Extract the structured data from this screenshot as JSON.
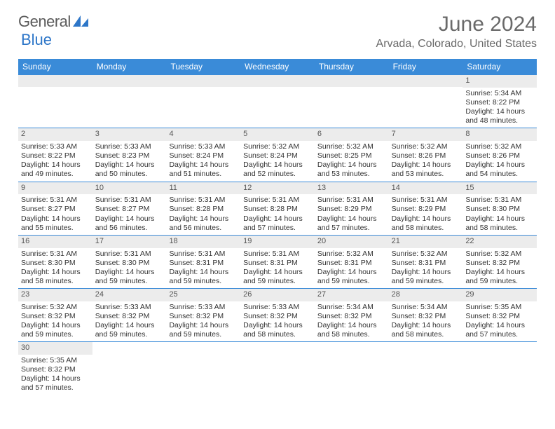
{
  "brand": {
    "part1": "General",
    "part2": "Blue"
  },
  "title": "June 2024",
  "location": "Arvada, Colorado, United States",
  "colors": {
    "header_blue": "#3a8bd8",
    "brand_blue": "#2d76c8",
    "text_gray": "#6a6a6a",
    "row_gray": "#ececec"
  },
  "day_names": [
    "Sunday",
    "Monday",
    "Tuesday",
    "Wednesday",
    "Thursday",
    "Friday",
    "Saturday"
  ],
  "weeks": [
    [
      null,
      null,
      null,
      null,
      null,
      null,
      {
        "n": "1",
        "sr": "Sunrise: 5:34 AM",
        "ss": "Sunset: 8:22 PM",
        "dl": "Daylight: 14 hours and 48 minutes."
      }
    ],
    [
      {
        "n": "2",
        "sr": "Sunrise: 5:33 AM",
        "ss": "Sunset: 8:22 PM",
        "dl": "Daylight: 14 hours and 49 minutes."
      },
      {
        "n": "3",
        "sr": "Sunrise: 5:33 AM",
        "ss": "Sunset: 8:23 PM",
        "dl": "Daylight: 14 hours and 50 minutes."
      },
      {
        "n": "4",
        "sr": "Sunrise: 5:33 AM",
        "ss": "Sunset: 8:24 PM",
        "dl": "Daylight: 14 hours and 51 minutes."
      },
      {
        "n": "5",
        "sr": "Sunrise: 5:32 AM",
        "ss": "Sunset: 8:24 PM",
        "dl": "Daylight: 14 hours and 52 minutes."
      },
      {
        "n": "6",
        "sr": "Sunrise: 5:32 AM",
        "ss": "Sunset: 8:25 PM",
        "dl": "Daylight: 14 hours and 53 minutes."
      },
      {
        "n": "7",
        "sr": "Sunrise: 5:32 AM",
        "ss": "Sunset: 8:26 PM",
        "dl": "Daylight: 14 hours and 53 minutes."
      },
      {
        "n": "8",
        "sr": "Sunrise: 5:32 AM",
        "ss": "Sunset: 8:26 PM",
        "dl": "Daylight: 14 hours and 54 minutes."
      }
    ],
    [
      {
        "n": "9",
        "sr": "Sunrise: 5:31 AM",
        "ss": "Sunset: 8:27 PM",
        "dl": "Daylight: 14 hours and 55 minutes."
      },
      {
        "n": "10",
        "sr": "Sunrise: 5:31 AM",
        "ss": "Sunset: 8:27 PM",
        "dl": "Daylight: 14 hours and 56 minutes."
      },
      {
        "n": "11",
        "sr": "Sunrise: 5:31 AM",
        "ss": "Sunset: 8:28 PM",
        "dl": "Daylight: 14 hours and 56 minutes."
      },
      {
        "n": "12",
        "sr": "Sunrise: 5:31 AM",
        "ss": "Sunset: 8:28 PM",
        "dl": "Daylight: 14 hours and 57 minutes."
      },
      {
        "n": "13",
        "sr": "Sunrise: 5:31 AM",
        "ss": "Sunset: 8:29 PM",
        "dl": "Daylight: 14 hours and 57 minutes."
      },
      {
        "n": "14",
        "sr": "Sunrise: 5:31 AM",
        "ss": "Sunset: 8:29 PM",
        "dl": "Daylight: 14 hours and 58 minutes."
      },
      {
        "n": "15",
        "sr": "Sunrise: 5:31 AM",
        "ss": "Sunset: 8:30 PM",
        "dl": "Daylight: 14 hours and 58 minutes."
      }
    ],
    [
      {
        "n": "16",
        "sr": "Sunrise: 5:31 AM",
        "ss": "Sunset: 8:30 PM",
        "dl": "Daylight: 14 hours and 58 minutes."
      },
      {
        "n": "17",
        "sr": "Sunrise: 5:31 AM",
        "ss": "Sunset: 8:30 PM",
        "dl": "Daylight: 14 hours and 59 minutes."
      },
      {
        "n": "18",
        "sr": "Sunrise: 5:31 AM",
        "ss": "Sunset: 8:31 PM",
        "dl": "Daylight: 14 hours and 59 minutes."
      },
      {
        "n": "19",
        "sr": "Sunrise: 5:31 AM",
        "ss": "Sunset: 8:31 PM",
        "dl": "Daylight: 14 hours and 59 minutes."
      },
      {
        "n": "20",
        "sr": "Sunrise: 5:32 AM",
        "ss": "Sunset: 8:31 PM",
        "dl": "Daylight: 14 hours and 59 minutes."
      },
      {
        "n": "21",
        "sr": "Sunrise: 5:32 AM",
        "ss": "Sunset: 8:31 PM",
        "dl": "Daylight: 14 hours and 59 minutes."
      },
      {
        "n": "22",
        "sr": "Sunrise: 5:32 AM",
        "ss": "Sunset: 8:32 PM",
        "dl": "Daylight: 14 hours and 59 minutes."
      }
    ],
    [
      {
        "n": "23",
        "sr": "Sunrise: 5:32 AM",
        "ss": "Sunset: 8:32 PM",
        "dl": "Daylight: 14 hours and 59 minutes."
      },
      {
        "n": "24",
        "sr": "Sunrise: 5:33 AM",
        "ss": "Sunset: 8:32 PM",
        "dl": "Daylight: 14 hours and 59 minutes."
      },
      {
        "n": "25",
        "sr": "Sunrise: 5:33 AM",
        "ss": "Sunset: 8:32 PM",
        "dl": "Daylight: 14 hours and 59 minutes."
      },
      {
        "n": "26",
        "sr": "Sunrise: 5:33 AM",
        "ss": "Sunset: 8:32 PM",
        "dl": "Daylight: 14 hours and 58 minutes."
      },
      {
        "n": "27",
        "sr": "Sunrise: 5:34 AM",
        "ss": "Sunset: 8:32 PM",
        "dl": "Daylight: 14 hours and 58 minutes."
      },
      {
        "n": "28",
        "sr": "Sunrise: 5:34 AM",
        "ss": "Sunset: 8:32 PM",
        "dl": "Daylight: 14 hours and 58 minutes."
      },
      {
        "n": "29",
        "sr": "Sunrise: 5:35 AM",
        "ss": "Sunset: 8:32 PM",
        "dl": "Daylight: 14 hours and 57 minutes."
      }
    ],
    [
      {
        "n": "30",
        "sr": "Sunrise: 5:35 AM",
        "ss": "Sunset: 8:32 PM",
        "dl": "Daylight: 14 hours and 57 minutes."
      },
      null,
      null,
      null,
      null,
      null,
      null
    ]
  ]
}
